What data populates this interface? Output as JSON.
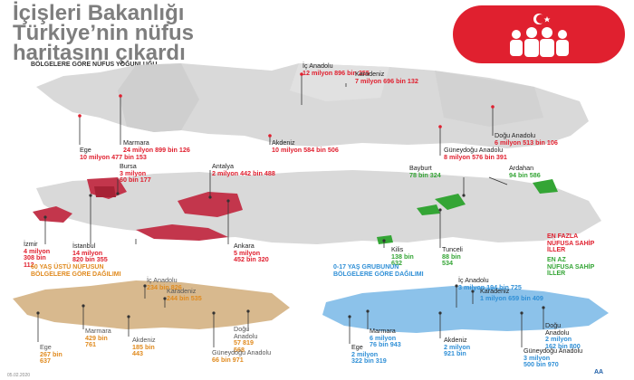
{
  "title": {
    "line1": "İçişleri Bakanlığı",
    "line2": "Türkiye’nin nüfus",
    "line3": "haritasını çıkardı"
  },
  "logo": {
    "icon": "population-people-icon",
    "color": "#e0202f"
  },
  "regional_density": {
    "heading": "BÖLGELERE GÖRE NÜFUS YOĞUNLUĞU",
    "items": [
      {
        "name": "İç Anadolu",
        "value": "12 milyon 896 bin 255"
      },
      {
        "name": "Karadeniz",
        "value": "7 milyon 696 bin 132"
      },
      {
        "name": "Marmara",
        "value": "24 milyon 899 bin 126"
      },
      {
        "name": "Ege",
        "value": "10 milyon 477 bin 153"
      },
      {
        "name": "Akdeniz",
        "value": "10 milyon 584 bin 506"
      },
      {
        "name": "Doğu Anadolu",
        "value": "6 milyon 513 bin 106"
      },
      {
        "name": "Güneydoğu Anadolu",
        "value": "8 milyon 576 bin 391"
      }
    ]
  },
  "cities": {
    "most": [
      {
        "name": "Bursa",
        "value": "3 milyon",
        "value2": "60 bin 177"
      },
      {
        "name": "Antalya",
        "value": "2 milyon 442 bin 488"
      },
      {
        "name": "İzmir",
        "value": "4 milyon",
        "value2": "308 bin",
        "value3": "112"
      },
      {
        "name": "İstanbul",
        "value": "14 milyon",
        "value2": "820 bin 355"
      },
      {
        "name": "Ankara",
        "value": "5 milyon",
        "value2": "452 bin 320"
      }
    ],
    "least": [
      {
        "name": "Bayburt",
        "value": "78 bin 324"
      },
      {
        "name": "Ardahan",
        "value": "94 bin 586"
      },
      {
        "name": "Kilis",
        "value": "138 bin",
        "value2": "632"
      },
      {
        "name": "Tunceli",
        "value": "88 bin",
        "value2": "534"
      }
    ],
    "legend": {
      "most_l1": "EN FAZLA",
      "most_l2": "NÜFUSA SAHİP",
      "most_l3": "İLLER",
      "least_l1": "EN AZ",
      "least_l2": "NÜFUSA SAHİP",
      "least_l3": "İLLER"
    }
  },
  "over60": {
    "heading_l1": "60 YAŞ ÜSTÜ NÜFUSUN",
    "heading_l2": "BÖLGELERE GÖRE DAĞILIMI",
    "items": [
      {
        "name": "İç Anadolu",
        "value": "234 bin 826"
      },
      {
        "name": "Karadeniz",
        "value": "244 bin 535"
      },
      {
        "name": "Marmara",
        "value": "429 bin",
        "value2": "761"
      },
      {
        "name": "Akdeniz",
        "value": "185 bin",
        "value2": "443"
      },
      {
        "name": "Doğu",
        "name2": "Anadolu",
        "value": "57 819",
        "value2": "568"
      },
      {
        "name": "Ege",
        "value": "267 bin",
        "value2": "637"
      },
      {
        "name": "Güneydoğu Anadolu",
        "value": "66 bin 971"
      }
    ]
  },
  "under17": {
    "heading_l1": "0-17 YAŞ GRUBUNUN",
    "heading_l2": "BÖLGELERE GÖRE DAĞILIMI",
    "items": [
      {
        "name": "İç Anadolu",
        "value": "3 milyon 194 bin 725"
      },
      {
        "name": "Karadeniz",
        "value": "1 milyon 659 bin 409"
      },
      {
        "name": "Marmara",
        "value": "6 milyon",
        "value2": "76 bin 943"
      },
      {
        "name": "Akdeniz",
        "value": "2 milyon",
        "value2": "921 bin"
      },
      {
        "name": "Doğu",
        "name2": "Anadolu",
        "value": "2 milyon",
        "value2": "162 bin 800"
      },
      {
        "name": "Ege",
        "value": "2 milyon",
        "value2": "322 bin 319"
      },
      {
        "name": "Güneydoğu Anadolu",
        "value": "3 milyon",
        "value2": "500 bin 970"
      }
    ]
  },
  "footer": {
    "date": "05.02.2020",
    "credit": "AA"
  },
  "colors": {
    "accent": "#e0202f",
    "orange": "#e08a1e",
    "green": "#34a535",
    "blue": "#2f8fd6",
    "map_gray": "#d9d9d9",
    "map_tan": "#d8b98e",
    "map_lightblue": "#8cc2ea"
  }
}
